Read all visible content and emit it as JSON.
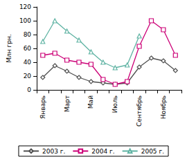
{
  "chart_data": {
    "type": "line",
    "y_label": "Млн грн.",
    "categories": [
      "Январь",
      null,
      "Март",
      null,
      "Май",
      null,
      "Июль",
      null,
      "Сентябрь",
      null,
      "Ноябрь",
      null
    ],
    "series": [
      {
        "name": "2003 г.",
        "color": "#505050",
        "marker": "diamond",
        "line_style": "solid",
        "values": [
          18,
          35,
          27,
          18,
          12,
          10,
          8,
          10,
          33,
          46,
          42,
          28
        ]
      },
      {
        "name": "2004 г.",
        "color": "#cc0077",
        "marker": "square",
        "line_style": "solid",
        "values": [
          50,
          53,
          43,
          40,
          37,
          15,
          8,
          12,
          63,
          100,
          87,
          50
        ]
      },
      {
        "name": "2005 г.",
        "color": "#5fb3a3",
        "marker": "triangle",
        "line_style": "solid",
        "values": [
          70,
          100,
          85,
          72,
          55,
          40,
          32,
          36,
          78,
          null,
          null,
          null
        ]
      }
    ],
    "ylim": [
      0,
      120
    ],
    "yticks": [
      0,
      20,
      40,
      60,
      80,
      100,
      120
    ],
    "grid": false,
    "legend": "bottom"
  }
}
